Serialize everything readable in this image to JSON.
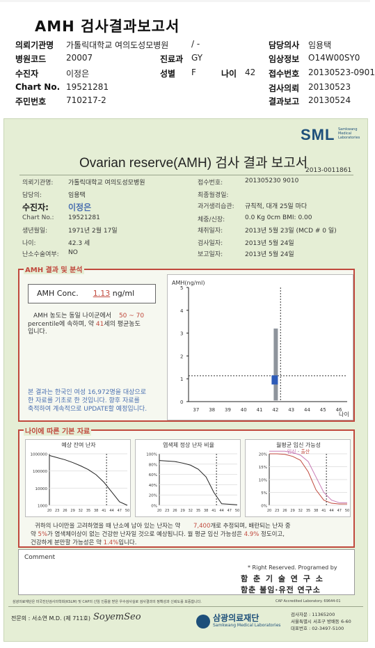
{
  "header": {
    "title": "AMH 검사결과보고서",
    "rows": [
      [
        {
          "l": "의뢰기관명",
          "v": "가톨릭대학교 여의도성모병원",
          "x": 22,
          "vx": 95
        },
        {
          "l": "",
          "v": "/ -",
          "x": 0,
          "vx": 275
        },
        {
          "l": "담당의사",
          "v": "임용택",
          "x": 386,
          "vx": 443
        }
      ],
      [
        {
          "l": "병원코드",
          "v": "20007",
          "x": 22,
          "vx": 95
        },
        {
          "l": "진료과",
          "v": "GY",
          "x": 230,
          "vx": 275
        },
        {
          "l": "임상정보",
          "v": "O14W00SY0",
          "x": 386,
          "vx": 443
        }
      ],
      [
        {
          "l": "수진자",
          "v": "이정은",
          "x": 22,
          "vx": 95
        },
        {
          "l": "성별",
          "v": "F",
          "x": 230,
          "vx": 275
        },
        {
          "l": "접수번호",
          "v": "20130523-0901",
          "x": 386,
          "vx": 443
        }
      ],
      [
        {
          "l": "Chart No.",
          "v": "19521281",
          "x": 22,
          "vx": 95
        },
        {
          "l": "",
          "v": "",
          "x": 0,
          "vx": 0
        },
        {
          "l": "검사의뢰",
          "v": "20130523",
          "x": 386,
          "vx": 443
        }
      ],
      [
        {
          "l": "주민번호",
          "v": "710217-2",
          "x": 22,
          "vx": 95
        },
        {
          "l": "",
          "v": "",
          "x": 0,
          "vx": 0
        },
        {
          "l": "결과보고",
          "v": "20130524",
          "x": 386,
          "vx": 443
        }
      ]
    ],
    "age_label": "나이",
    "age_value": "42"
  },
  "report": {
    "logo": "SML",
    "logo_sub": "Samkwang Medical Laboratories",
    "title": "Ovarian reserve(AMH) 검사 결과 보고서",
    "doc_no": "2013-0011861",
    "left_rows": [
      {
        "l": "의뢰기관명:",
        "v": "가톨릭대학교 여의도성모병원"
      },
      {
        "l": "담당의:",
        "v": "임용택"
      },
      {
        "l": "수진자:",
        "v": "이정은"
      },
      {
        "l": "Chart No.:",
        "v": "19521281"
      },
      {
        "l": "생년월일:",
        "v": "1971년 2월 17일"
      },
      {
        "l": "나이:",
        "v": "42.3 세"
      },
      {
        "l": "난소수술여부:",
        "v": "NO"
      }
    ],
    "right_rows": [
      {
        "l": "접수번호:",
        "v": "201305230 9010"
      },
      {
        "l": "최종월경일:",
        "v": ""
      },
      {
        "l": "과거생리습관:",
        "v": "규칙적, 대개   25일 마다"
      },
      {
        "l": "체중/신장:",
        "v": "0.0 Kg        0cm   BMI:  0.00"
      },
      {
        "l": "채취일자:",
        "v": "2013년 5월 23일   (MCD #  0 일)"
      },
      {
        "l": "검사일자:",
        "v": "2013년 5월 24일"
      },
      {
        "l": "보고일자:",
        "v": "2013년 5월 24일"
      }
    ],
    "amh_section": "AMH 결과 및 분석",
    "amh_conc_label": "AMH Conc.",
    "amh_conc_value": "1.13",
    "amh_conc_unit": "ng/ml",
    "amh_text_1": "AMH 농도는 동일 나이군에서",
    "amh_pct_range": "50 ~  70",
    "amh_text_2": "percentile에 속하며, 약",
    "amh_equiv_age": "41",
    "amh_text_3": "세의 평균농도",
    "amh_text_4": "입니다.",
    "amh_note_1": "본 결과는 한국인 여성 16,972명을 대상으로",
    "amh_note_2": "한 자료를 기초로 한 것입니다. 향후 자료를",
    "amh_note_3": "축적하여 계속적으로 UPDATE할 예정입니다.",
    "plot_ylabel": "AMH(ng/ml)",
    "plot_xlabel": "나이",
    "age_section": "나이에 따른 기본 자료",
    "mini1_title": "예상 잔여 난자",
    "mini2_title": "염색체 정상 난자 비율",
    "mini3_title": "월평균 임신 가능성",
    "mini3_legend_a": "임신",
    "mini3_legend_b": "출산",
    "summary_1a": "귀하의 나이만을 고려하였을 때 난소에 남아 있는 난자는 약",
    "summary_1b": "7,400",
    "summary_1c": "개로 추정되며, 배란되는 난자 중",
    "summary_2a": "약",
    "summary_2b": "5%",
    "summary_2c": "가 염색체이상이 없는 건강한 난자일 것으로 예상됩니다. 월 평균 임신 가능성은",
    "summary_2d": "4.9%",
    "summary_2e": "정도이고,",
    "summary_3a": "건강하게 분만할 가능성은 약",
    "summary_3b": "1.4%",
    "summary_3c": "입니다.",
    "comment_label": "Comment",
    "rights_1": "* Right Reserved. Programed by",
    "rights_2": "함 춘 기 술 연 구 소",
    "rights_3": "함춘 불임·유전 연구소",
    "footer_left": "삼광의료재단은 미국진단검사의학회(KSLM) 및 CAP의 신임 인증을 받은 우수검사실로 검사결과의 정확성과 신뢰도를 보증합니다.",
    "footer_right": "CAP  Accredited  Laboratory.  69644-01",
    "signature": "전문의 : 서소연 M.D. (제 711호)",
    "signature_script": "SoyemSeo",
    "foundation_name": "삼광의료재단",
    "foundation_en": "Samkwang Medical Laboratories",
    "foundation_tel": "검사자문 : 11365200",
    "foundation_addr": "서울특별시 서초구 방배동 6-60",
    "foundation_fax": "대표번호 : 02-3497-5100"
  },
  "chart_data": [
    {
      "type": "bar",
      "title": "",
      "ylabel": "AMH(ng/ml)",
      "xlabel": "나이",
      "x": [
        37,
        38,
        39,
        40,
        41,
        42,
        43,
        44,
        45,
        46
      ],
      "ylim": [
        0,
        5
      ],
      "yticks": [
        0,
        1,
        2,
        3,
        4,
        5
      ],
      "range_bar": {
        "x": 42,
        "low": 0.05,
        "high": 3.2
      },
      "iqr_box": {
        "x": 42,
        "low": 0.75,
        "high": 1.15
      },
      "measured": {
        "age": 42.3,
        "value": 1.13
      }
    },
    {
      "type": "line",
      "title": "예상 잔여 난자",
      "x": [
        20,
        23,
        26,
        29,
        32,
        35,
        38,
        41,
        44,
        47,
        50
      ],
      "yticks": [
        "1000000",
        "100000",
        "10000",
        "1000"
      ],
      "marker_x": 42,
      "series": [
        {
          "values": [
            800000,
            600000,
            450000,
            310000,
            200000,
            120000,
            60000,
            22000,
            6000,
            1600,
            1000
          ]
        }
      ]
    },
    {
      "type": "line",
      "title": "염색체 정상 난자 비율",
      "x": [
        20,
        23,
        26,
        29,
        32,
        35,
        38,
        41,
        44,
        47,
        50
      ],
      "yticks": [
        "0%",
        "20%",
        "40%",
        "60%",
        "80%",
        "100%"
      ],
      "marker_x": 42,
      "series": [
        {
          "values": [
            87,
            86,
            85,
            82,
            78,
            70,
            55,
            25,
            3,
            2,
            1
          ]
        }
      ]
    },
    {
      "type": "line",
      "title": "월평균 임신 가능성",
      "x": [
        20,
        23,
        26,
        29,
        32,
        35,
        38,
        41,
        44,
        47,
        50
      ],
      "yticks": [
        "0%",
        "5%",
        "10%",
        "15%",
        "20%"
      ],
      "marker_x": 42,
      "series": [
        {
          "name": "임신",
          "color": "#c77ab4",
          "values": [
            21,
            21,
            21,
            20.5,
            19.5,
            17,
            11,
            5,
            2,
            1,
            1
          ]
        },
        {
          "name": "출산",
          "color": "#c0483c",
          "values": [
            20,
            20,
            19.8,
            19,
            17.5,
            13,
            6,
            2,
            0.8,
            0.5,
            0.5
          ]
        }
      ]
    }
  ],
  "colors": {
    "accent": "#c0483c",
    "sheet": "#e5eed5",
    "brand": "#1d4f7a"
  }
}
